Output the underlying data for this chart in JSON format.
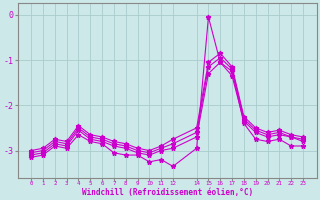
{
  "xlabel": "Windchill (Refroidissement éolien,°C)",
  "bg_color": "#cce8e8",
  "grid_color": "#aacccc",
  "line_color": "#cc00cc",
  "x": [
    0,
    1,
    2,
    3,
    4,
    5,
    6,
    7,
    8,
    9,
    10,
    11,
    12,
    14,
    15,
    16,
    17,
    18,
    19,
    20,
    21,
    22,
    23
  ],
  "series1": [
    -3.15,
    -3.1,
    -2.9,
    -2.95,
    -2.65,
    -2.8,
    -2.85,
    -3.05,
    -3.1,
    -3.1,
    -3.25,
    -3.2,
    -3.35,
    -2.95,
    -0.05,
    -1.05,
    -1.25,
    -2.4,
    -2.75,
    -2.8,
    -2.75,
    -2.9,
    -2.9
  ],
  "series2": [
    -3.1,
    -3.05,
    -2.85,
    -2.9,
    -2.55,
    -2.75,
    -2.8,
    -2.9,
    -2.95,
    -3.05,
    -3.1,
    -3.0,
    -2.95,
    -2.7,
    -1.3,
    -1.05,
    -1.35,
    -2.35,
    -2.6,
    -2.7,
    -2.65,
    -2.7,
    -2.8
  ],
  "series3": [
    -3.05,
    -3.0,
    -2.8,
    -2.85,
    -2.5,
    -2.7,
    -2.75,
    -2.85,
    -2.9,
    -3.0,
    -3.05,
    -2.95,
    -2.85,
    -2.6,
    -1.15,
    -0.95,
    -1.2,
    -2.3,
    -2.55,
    -2.65,
    -2.6,
    -2.7,
    -2.75
  ],
  "series4": [
    -3.0,
    -2.95,
    -2.75,
    -2.8,
    -2.45,
    -2.65,
    -2.7,
    -2.8,
    -2.85,
    -2.95,
    -3.0,
    -2.9,
    -2.75,
    -2.5,
    -1.05,
    -0.85,
    -1.15,
    -2.25,
    -2.5,
    -2.6,
    -2.55,
    -2.65,
    -2.7
  ],
  "ylim": [
    -3.6,
    0.25
  ],
  "yticks": [
    0,
    -1,
    -2,
    -3
  ],
  "xtick_labels": [
    "0",
    "1",
    "2",
    "3",
    "4",
    "5",
    "6",
    "7",
    "8",
    "9",
    "101112",
    "",
    "",
    "14151617181920212223",
    "",
    "",
    "",
    "",
    "",
    "",
    "",
    "",
    ""
  ],
  "xticks_pos": [
    0,
    1,
    2,
    3,
    4,
    5,
    6,
    7,
    8,
    9,
    10,
    11,
    12,
    14,
    15,
    16,
    17,
    18,
    19,
    20,
    21,
    22,
    23
  ]
}
